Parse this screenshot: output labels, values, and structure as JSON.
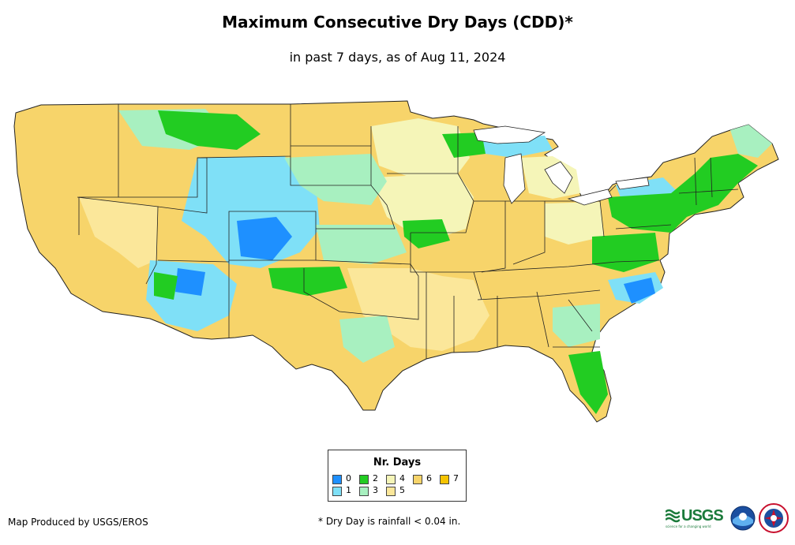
{
  "header": {
    "title": "Maximum Consecutive Dry Days (CDD)*",
    "subtitle": "in past 7 days, as of Aug 11, 2024"
  },
  "legend": {
    "title": "Nr. Days",
    "items": [
      {
        "label": "0",
        "color": "#1e90ff"
      },
      {
        "label": "1",
        "color": "#7fe0f7"
      },
      {
        "label": "2",
        "color": "#22cc22"
      },
      {
        "label": "3",
        "color": "#a8f0c0"
      },
      {
        "label": "4",
        "color": "#f5f5b8"
      },
      {
        "label": "5",
        "color": "#fbe79a"
      },
      {
        "label": "6",
        "color": "#f7d46a"
      },
      {
        "label": "7",
        "color": "#f5c400"
      }
    ]
  },
  "footer": {
    "credit": "Map Produced by USGS/EROS",
    "footnote": "* Dry Day is rainfall < 0.04 in."
  },
  "logos": {
    "usgs_word": "USGS",
    "usgs_tagline": "science for a changing world",
    "noaa_text": "NOAA",
    "nws_text": "NATIONAL WEATHER SERVICE"
  }
}
